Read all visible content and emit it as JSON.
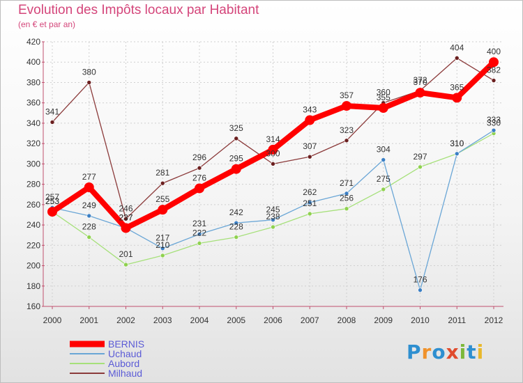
{
  "title": "Evolution des Impôts locaux par Habitant",
  "subtitle": "(en € et par an)",
  "logo": {
    "text": "Proxiti",
    "colors": [
      "#2e8fd0",
      "#f0922b",
      "#2e8fd0",
      "#e04c2e",
      "#7cb83a",
      "#2e8fd0",
      "#e8b82c"
    ]
  },
  "chart_data": {
    "type": "line",
    "title": "Evolution des Impôts locaux par Habitant",
    "subtitle": "(en € et par an)",
    "categories": [
      "2000",
      "2001",
      "2002",
      "2003",
      "2004",
      "2005",
      "2006",
      "2007",
      "2008",
      "2009",
      "2010",
      "2011",
      "2012"
    ],
    "ylim": [
      160,
      420
    ],
    "yticks": [
      160,
      180,
      200,
      220,
      240,
      260,
      280,
      300,
      320,
      340,
      360,
      380,
      400,
      420
    ],
    "grid": true,
    "legend_position": "bottom-left",
    "series": [
      {
        "name": "BERNIS",
        "color": "#ff0000",
        "width": 8,
        "values": [
          253,
          277,
          237,
          255,
          276,
          295,
          314,
          343,
          357,
          355,
          370,
          365,
          400
        ]
      },
      {
        "name": "Uchaud",
        "color": "#6aa6d6",
        "width": 1.3,
        "marker": "#3b7fc4",
        "values": [
          257,
          249,
          237,
          217,
          231,
          242,
          245,
          262,
          271,
          304,
          176,
          310,
          333
        ]
      },
      {
        "name": "Aubord",
        "color": "#a6e07a",
        "width": 1.3,
        "marker": "#8fd14f",
        "values": [
          253,
          228,
          201,
          210,
          222,
          228,
          238,
          251,
          256,
          275,
          297,
          310,
          330
        ]
      },
      {
        "name": "Milhaud",
        "color": "#8b3a3a",
        "width": 1.3,
        "marker": "#6b1f1f",
        "values": [
          341,
          380,
          246,
          281,
          296,
          325,
          300,
          307,
          323,
          360,
          372,
          404,
          382
        ]
      }
    ]
  }
}
